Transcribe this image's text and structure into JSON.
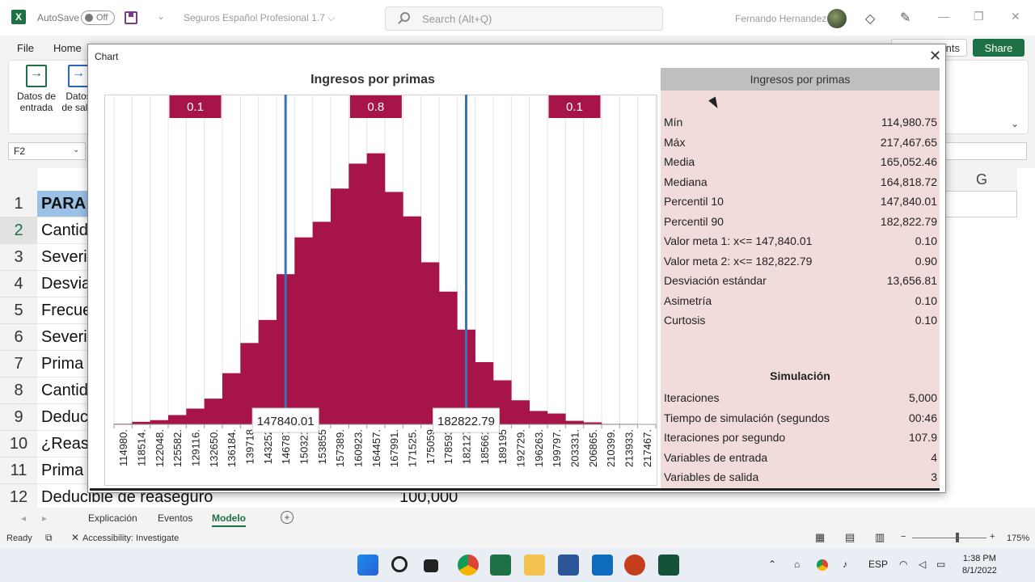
{
  "title_bar": {
    "autosave_label": "AutoSave",
    "autosave_state": "Off",
    "doc_title": "Seguros Español Profesional 1.7 ⌵",
    "search_placeholder": "Search (Alt+Q)",
    "user_name": "Fernando Hernandez"
  },
  "menu": {
    "items": [
      "File",
      "Home"
    ],
    "comments_label": "ments",
    "share_label": "Share"
  },
  "ribbon": {
    "buttons": [
      {
        "line1": "Datos de",
        "line2": "entrada"
      },
      {
        "line1": "Datos",
        "line2": "de salid"
      }
    ]
  },
  "formula_bar": {
    "name_box": "F2"
  },
  "grid": {
    "col_g": "G",
    "rows": [
      {
        "num": "1",
        "a": "PARA"
      },
      {
        "num": "2",
        "a": "Cantid"
      },
      {
        "num": "3",
        "a": "Severi"
      },
      {
        "num": "4",
        "a": "Desvia"
      },
      {
        "num": "5",
        "a": "Frecue"
      },
      {
        "num": "6",
        "a": "Severi"
      },
      {
        "num": "7",
        "a": "Prima"
      },
      {
        "num": "8",
        "a": "Cantid"
      },
      {
        "num": "9",
        "a": "Deduc"
      },
      {
        "num": "10",
        "a": "¿Reas"
      },
      {
        "num": "11",
        "a": "Prima"
      },
      {
        "num": "12",
        "a": ""
      }
    ],
    "row12_text": "Deducible de reaseguro",
    "row12_value": "100,000"
  },
  "sheets": {
    "tabs": [
      "Explicación",
      "Eventos",
      "Modelo"
    ],
    "active": "Modelo"
  },
  "status": {
    "ready": "Ready",
    "accessibility": "Accessibility: Investigate",
    "zoom": "175%"
  },
  "taskbar": {
    "lang": "ESP",
    "time": "1:38 PM",
    "date": "8/1/2022"
  },
  "dialog": {
    "title": "Chart",
    "stats_title": "Ingresos por primas",
    "stats": [
      {
        "label": "Mín",
        "value": "114,980.75"
      },
      {
        "label": "Máx",
        "value": "217,467.65"
      },
      {
        "label": "Media",
        "value": "165,052.46"
      },
      {
        "label": "Mediana",
        "value": "164,818.72"
      },
      {
        "label": "Percentil 10",
        "value": "147,840.01"
      },
      {
        "label": "Percentil 90",
        "value": "182,822.79"
      },
      {
        "label": "Valor meta 1: x<= 147,840.01",
        "value": "0.10"
      },
      {
        "label": "Valor meta 2: x<= 182,822.79",
        "value": "0.90"
      },
      {
        "label": "Desviación estándar",
        "value": "13,656.81"
      },
      {
        "label": "Asimetría",
        "value": "0.10"
      },
      {
        "label": "Curtosis",
        "value": "0.10"
      }
    ],
    "sim_title": "Simulación",
    "sim": [
      {
        "label": "Iteraciones",
        "value": "5,000"
      },
      {
        "label": "Tiempo de simulación (segundos",
        "value": "00:46"
      },
      {
        "label": "Iteraciones por segundo",
        "value": "107.9"
      },
      {
        "label": "Variables de entrada",
        "value": "4"
      },
      {
        "label": "Variables de salida",
        "value": "3"
      }
    ]
  },
  "chart_data": {
    "type": "bar",
    "title": "Ingresos por primas",
    "categories": [
      "114980.",
      "118514.",
      "122048.",
      "125582.",
      "129116.",
      "132650.",
      "136184.",
      "139718",
      "143252",
      "146787",
      "150321",
      "153855",
      "157389.",
      "160923.",
      "164457.",
      "167991.",
      "171525.",
      "175059",
      "178593",
      "182127",
      "185661",
      "189195",
      "192729.",
      "196263.",
      "199797.",
      "203331.",
      "206865.",
      "210399.",
      "213933.",
      "217467."
    ],
    "values": [
      0.0004,
      0.0015,
      0.0025,
      0.0055,
      0.0093,
      0.0152,
      0.0302,
      0.048,
      0.0616,
      0.0886,
      0.1103,
      0.1195,
      0.1391,
      0.1538,
      0.1599,
      0.1371,
      0.1227,
      0.0956,
      0.0783,
      0.0559,
      0.0367,
      0.026,
      0.0142,
      0.0079,
      0.0064,
      0.0021,
      0.0012,
      0.0003,
      0.0003,
      0.0001
    ],
    "ylim": [
      0,
      0.185
    ],
    "bar_color": "#a6144a",
    "markers": [
      {
        "value": "147840.01",
        "index": 9.5
      },
      {
        "value": "182822.79",
        "index": 19.5
      }
    ],
    "region_labels": [
      {
        "label": "0.1",
        "index": 4.5
      },
      {
        "label": "0.8",
        "index": 14.5
      },
      {
        "label": "0.1",
        "index": 25.5
      }
    ],
    "marker_color": "#3a74b8"
  }
}
